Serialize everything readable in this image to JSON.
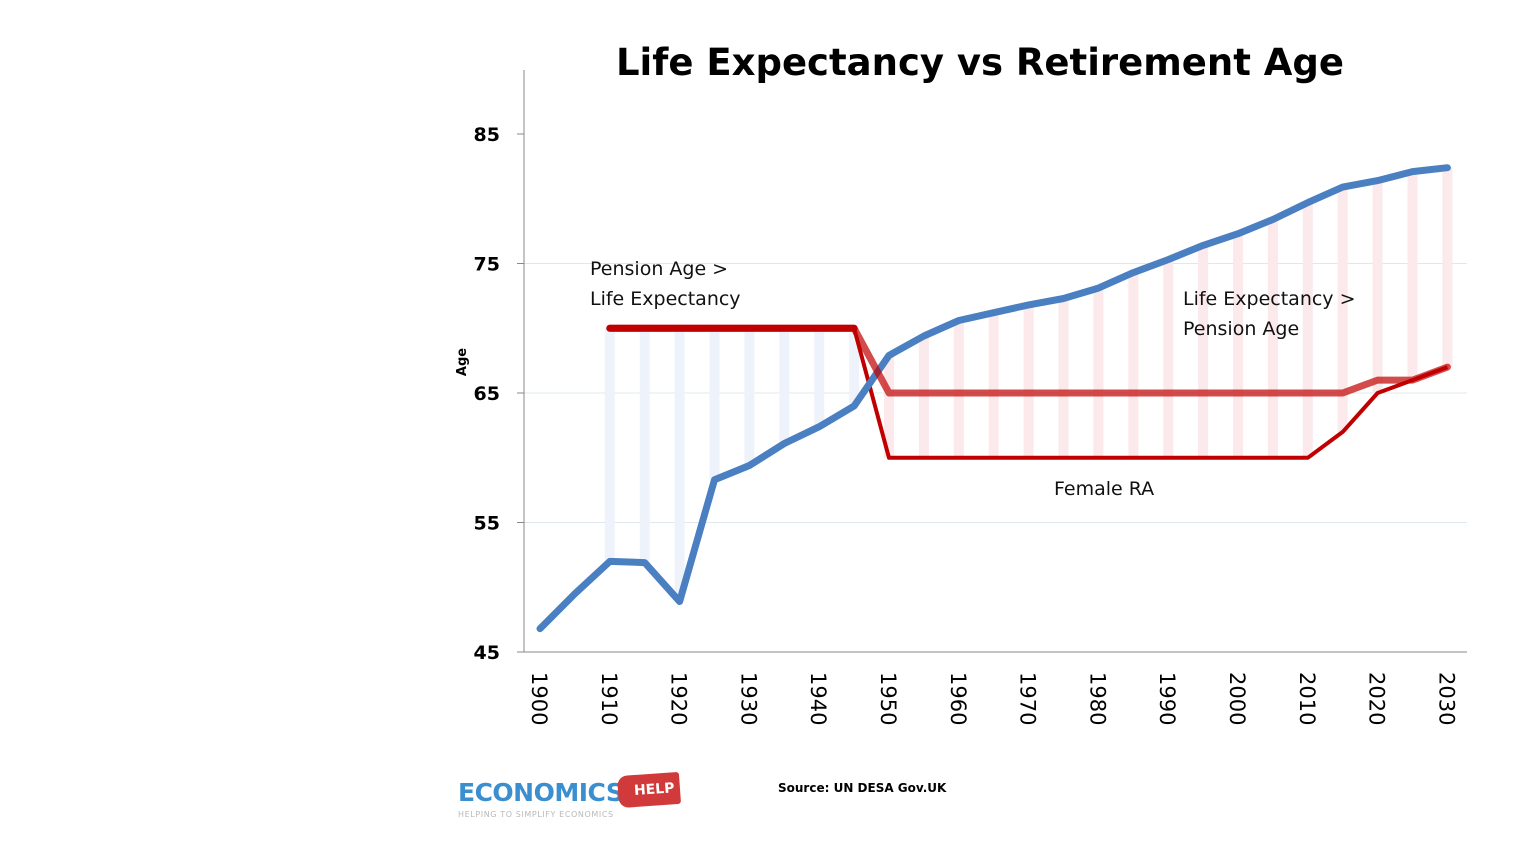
{
  "chart_data": {
    "type": "line",
    "title": "Life Expectancy vs Retirement Age",
    "ylabel": "Age",
    "xlabel": "",
    "ylim": [
      45,
      90
    ],
    "xlim": [
      1900,
      2030
    ],
    "yticks": [
      45,
      55,
      65,
      75,
      85
    ],
    "xticks": [
      1900,
      1910,
      1920,
      1930,
      1940,
      1950,
      1960,
      1970,
      1980,
      1990,
      2000,
      2010,
      2020,
      2030
    ],
    "grid": "horizontal",
    "series": [
      {
        "key": "life_expectancy",
        "color": "#4a7fc1",
        "x": [
          1900,
          1905,
          1910,
          1915,
          1920,
          1925,
          1930,
          1935,
          1940,
          1945,
          1950,
          1955,
          1960,
          1965,
          1970,
          1975,
          1980,
          1985,
          1990,
          1995,
          2000,
          2005,
          2010,
          2015,
          2020,
          2025,
          2030
        ],
        "values": [
          46.8,
          49.5,
          52.0,
          51.9,
          48.9,
          58.3,
          59.4,
          61.1,
          62.4,
          64.0,
          67.9,
          69.4,
          70.6,
          71.2,
          71.8,
          72.3,
          73.1,
          74.3,
          75.3,
          76.4,
          77.3,
          78.4,
          79.7,
          80.9,
          81.4,
          82.1,
          82.4
        ]
      },
      {
        "key": "male_pension_age",
        "color": "#c00000",
        "x": [
          1910,
          1945,
          1950,
          2015,
          2020,
          2025,
          2030
        ],
        "values": [
          70,
          70,
          65,
          65,
          66,
          66,
          67
        ]
      },
      {
        "key": "female_pension_age",
        "color": "#c00000",
        "x": [
          1910,
          1945,
          1950,
          2010,
          2015,
          2020,
          2025,
          2030
        ],
        "values": [
          70,
          70,
          60,
          60,
          62,
          65,
          66,
          67
        ]
      }
    ],
    "annotations": {
      "pension_gt_le": [
        "Pension Age >",
        "Life Expectancy"
      ],
      "le_gt_pension": [
        "Life Expectancy >",
        "Pension Age"
      ],
      "female_ra": "Female RA"
    }
  },
  "source": "Source: UN DESA Gov.UK",
  "logo": {
    "word": "ECONOMICS",
    "tag": "HELP",
    "sub": "HELPING TO SIMPLIFY ECONOMICS"
  }
}
